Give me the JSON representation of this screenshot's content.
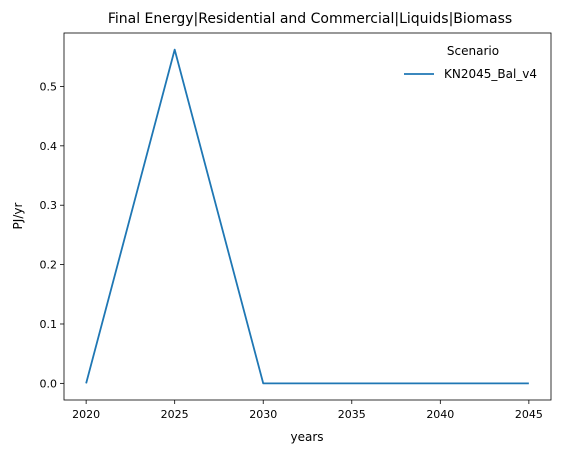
{
  "chart_data": {
    "type": "line",
    "title": "Final Energy|Residential and Commercial|Liquids|Biomass",
    "xlabel": "years",
    "ylabel": "PJ/yr",
    "x": [
      2020,
      2025,
      2030,
      2035,
      2040,
      2045
    ],
    "series": [
      {
        "name": "KN2045_Bal_v4",
        "values": [
          0.0,
          0.562,
          0.0,
          0.0,
          0.0,
          0.0
        ],
        "color": "#1f77b4"
      }
    ],
    "xticks": [
      2020,
      2025,
      2030,
      2035,
      2040,
      2045
    ],
    "xtick_labels": [
      "2020",
      "2025",
      "2030",
      "2035",
      "2040",
      "2045"
    ],
    "yticks": [
      0.0,
      0.1,
      0.2,
      0.3,
      0.4,
      0.5
    ],
    "ytick_labels": [
      "0.0",
      "0.1",
      "0.2",
      "0.3",
      "0.4",
      "0.5"
    ],
    "xlim": [
      2018.75,
      2046.25
    ],
    "ylim": [
      -0.028,
      0.59
    ],
    "grid": false,
    "legend": {
      "title": "Scenario",
      "placement": "top-right"
    }
  }
}
